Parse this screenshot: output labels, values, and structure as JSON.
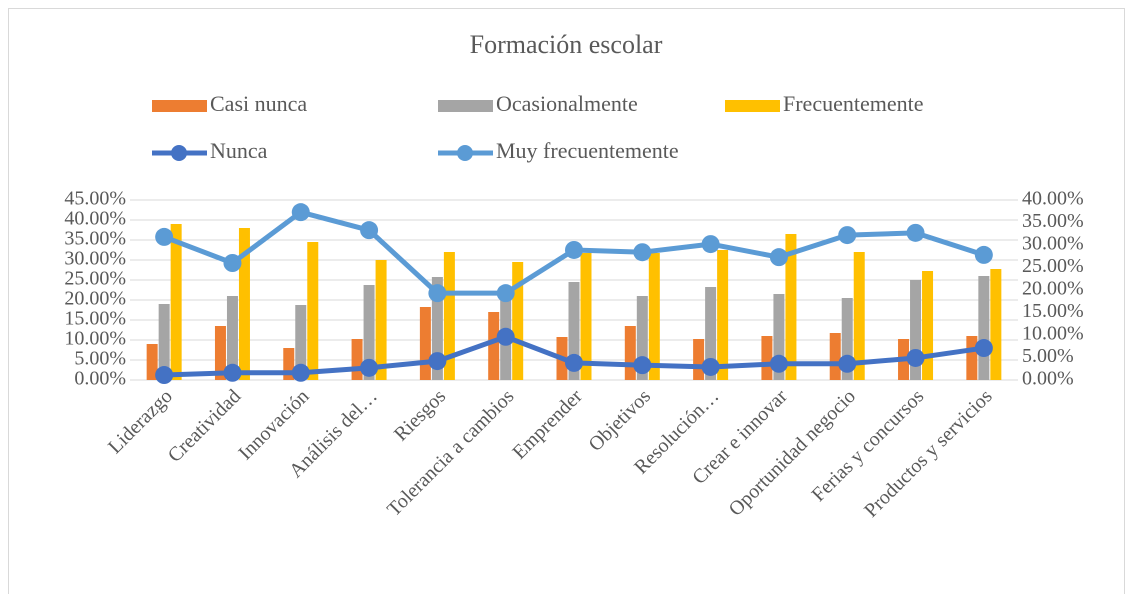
{
  "chart_data": {
    "type": "bar",
    "title": "Formación escolar",
    "categories": [
      "Liderazgo",
      "Creatividad",
      "Innovación",
      "Análisis del…",
      "Riesgos",
      "Tolerancia a cambios",
      "Emprender",
      "Objetivos",
      "Resolución…",
      "Crear e innovar",
      "Oportunidad negocio",
      "Ferias y concursos",
      "Productos y servicios"
    ],
    "series": [
      {
        "name": "Casi nunca",
        "type": "bar",
        "color": "#ED7D31",
        "values": [
          9,
          13.5,
          8,
          10.25,
          18.25,
          17,
          10.75,
          13.5,
          10.25,
          11,
          11.75,
          10.25,
          11
        ]
      },
      {
        "name": "Ocasionalmente",
        "type": "bar",
        "color": "#A5A5A5",
        "values": [
          19,
          21,
          18.75,
          23.75,
          25.75,
          20,
          24.5,
          21,
          23.25,
          21.5,
          20.5,
          25,
          26
        ]
      },
      {
        "name": "Frecuentemente",
        "type": "bar",
        "color": "#FFC000",
        "values": [
          39,
          38,
          34.5,
          30,
          32,
          29.5,
          31.75,
          31.75,
          32.5,
          36.5,
          32,
          27.25,
          27.75
        ]
      },
      {
        "name": "Nunca",
        "type": "line",
        "axis": "y2",
        "color": "#4472C4",
        "values": [
          1.1,
          1.6,
          1.6,
          2.7,
          4.2,
          9.6,
          3.8,
          3.3,
          2.9,
          3.6,
          3.6,
          4.9,
          7.1
        ]
      },
      {
        "name": "Muy frecuentemente",
        "type": "line",
        "axis": "y2",
        "color": "#5B9BD5",
        "values": [
          31.8,
          26,
          37.3,
          33.3,
          19.3,
          19.3,
          28.9,
          28.4,
          30.2,
          27.3,
          32.2,
          32.7,
          27.8
        ]
      }
    ],
    "ylim": [
      0,
      45
    ],
    "yticks": [
      {
        "value": 0,
        "label": "0.00%"
      },
      {
        "value": 5,
        "label": "5.00%"
      },
      {
        "value": 10,
        "label": "10.00%"
      },
      {
        "value": 15,
        "label": "15.00%"
      },
      {
        "value": 20,
        "label": "20.00%"
      },
      {
        "value": 25,
        "label": "25.00%"
      },
      {
        "value": 30,
        "label": "30.00%"
      },
      {
        "value": 35,
        "label": "35.00%"
      },
      {
        "value": 40,
        "label": "40.00%"
      },
      {
        "value": 45,
        "label": "45.00%"
      }
    ],
    "y2lim": [
      0,
      40
    ],
    "y2ticks": [
      {
        "value": 0,
        "label": "0.00%"
      },
      {
        "value": 5,
        "label": "5.00%"
      },
      {
        "value": 10,
        "label": "10.00%"
      },
      {
        "value": 15,
        "label": "15.00%"
      },
      {
        "value": 20,
        "label": "20.00%"
      },
      {
        "value": 25,
        "label": "25.00%"
      },
      {
        "value": 30,
        "label": "30.00%"
      },
      {
        "value": 35,
        "label": "35.00%"
      },
      {
        "value": 40,
        "label": "40.00%"
      }
    ],
    "grid": true
  }
}
